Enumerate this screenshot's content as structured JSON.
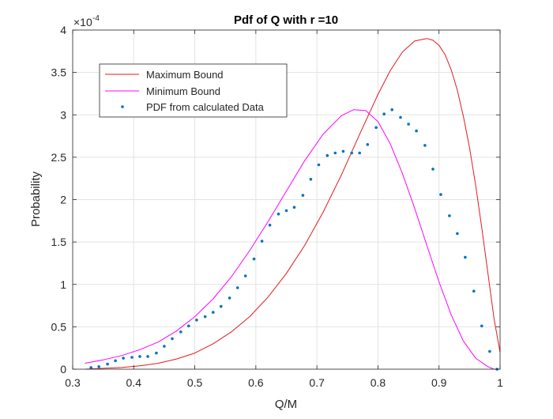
{
  "chart_data": {
    "type": "line",
    "title": "Pdf of Q with r =10",
    "xlabel": "Q/M",
    "ylabel": "Probability",
    "xlim": [
      0.3,
      1.0
    ],
    "ylim": [
      0,
      4
    ],
    "y_multiplier_base": "×10",
    "y_multiplier_exp": "-4",
    "grid": true,
    "legend_position": "top-left",
    "xticks": [
      0.3,
      0.4,
      0.5,
      0.6,
      0.7,
      0.8,
      0.9,
      1.0
    ],
    "xtick_labels": [
      "0.3",
      "0.4",
      "0.5",
      "0.6",
      "0.7",
      "0.8",
      "0.9",
      "1"
    ],
    "yticks": [
      0,
      0.5,
      1,
      1.5,
      2,
      2.5,
      3,
      3.5,
      4
    ],
    "ytick_labels": [
      "0",
      "0.5",
      "1",
      "1.5",
      "2",
      "2.5",
      "3",
      "3.5",
      "4"
    ],
    "series": [
      {
        "name": "Maximum Bound",
        "style": "line",
        "color": "#e41a1c",
        "x": [
          0.32,
          0.35,
          0.38,
          0.41,
          0.44,
          0.47,
          0.5,
          0.53,
          0.56,
          0.59,
          0.62,
          0.65,
          0.68,
          0.71,
          0.74,
          0.77,
          0.8,
          0.82,
          0.84,
          0.86,
          0.88,
          0.89,
          0.9,
          0.91,
          0.92,
          0.93,
          0.94,
          0.95,
          0.96,
          0.97,
          0.98,
          0.99,
          1.0
        ],
        "y": [
          0.0,
          0.01,
          0.02,
          0.04,
          0.07,
          0.12,
          0.19,
          0.3,
          0.44,
          0.62,
          0.85,
          1.13,
          1.46,
          1.85,
          2.29,
          2.77,
          3.24,
          3.52,
          3.74,
          3.87,
          3.9,
          3.88,
          3.82,
          3.71,
          3.53,
          3.29,
          2.98,
          2.61,
          2.17,
          1.67,
          1.14,
          0.6,
          0.2
        ]
      },
      {
        "name": "Minimum Bound",
        "style": "line",
        "color": "#ff00ff",
        "x": [
          0.32,
          0.35,
          0.38,
          0.41,
          0.44,
          0.47,
          0.5,
          0.53,
          0.56,
          0.59,
          0.62,
          0.65,
          0.68,
          0.71,
          0.74,
          0.76,
          0.78,
          0.8,
          0.82,
          0.84,
          0.86,
          0.88,
          0.9,
          0.92,
          0.94,
          0.96,
          0.98,
          0.99,
          1.0
        ],
        "y": [
          0.07,
          0.11,
          0.16,
          0.23,
          0.32,
          0.45,
          0.62,
          0.83,
          1.09,
          1.4,
          1.74,
          2.1,
          2.46,
          2.77,
          2.99,
          3.06,
          3.05,
          2.92,
          2.66,
          2.31,
          1.9,
          1.46,
          1.03,
          0.64,
          0.33,
          0.13,
          0.03,
          0.0,
          0.0
        ]
      },
      {
        "name": "PDF from calculated Data",
        "style": "markers",
        "color": "#0072bd",
        "x": [
          0.33,
          0.343,
          0.357,
          0.37,
          0.383,
          0.397,
          0.41,
          0.423,
          0.437,
          0.45,
          0.463,
          0.477,
          0.49,
          0.503,
          0.517,
          0.53,
          0.543,
          0.557,
          0.57,
          0.583,
          0.597,
          0.61,
          0.623,
          0.637,
          0.65,
          0.663,
          0.677,
          0.69,
          0.703,
          0.717,
          0.73,
          0.743,
          0.757,
          0.77,
          0.783,
          0.797,
          0.81,
          0.823,
          0.837,
          0.85,
          0.863,
          0.877,
          0.89,
          0.903,
          0.917,
          0.93,
          0.943,
          0.957,
          0.97,
          0.983,
          0.995
        ],
        "y": [
          0.02,
          0.03,
          0.06,
          0.1,
          0.13,
          0.14,
          0.15,
          0.15,
          0.19,
          0.27,
          0.36,
          0.44,
          0.51,
          0.58,
          0.62,
          0.67,
          0.74,
          0.84,
          0.96,
          1.1,
          1.3,
          1.51,
          1.7,
          1.83,
          1.87,
          1.91,
          2.05,
          2.24,
          2.41,
          2.52,
          2.55,
          2.57,
          2.55,
          2.55,
          2.65,
          2.85,
          3.01,
          3.06,
          2.97,
          2.89,
          2.81,
          2.64,
          2.36,
          2.06,
          1.81,
          1.6,
          1.32,
          0.92,
          0.51,
          0.21,
          0.0
        ]
      }
    ]
  }
}
